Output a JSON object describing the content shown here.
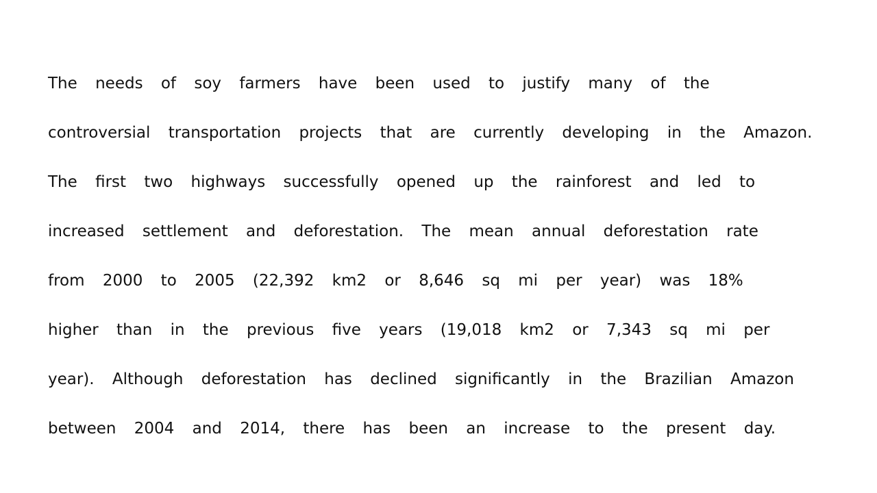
{
  "document": {
    "lines": [
      "The needs of soy farmers have been used to justify many of the",
      "controversial transportation projects that are currently developing in the Amazon.",
      "The first two highways successfully opened up the rainforest and led to",
      "increased settlement and deforestation. The mean annual deforestation rate",
      "from 2000 to 2005 (22,392 km2 or 8,646 sq mi per year) was 18%",
      "higher than in the previous five years (19,018 km2 or 7,343 sq mi per",
      "year). Although deforestation has declined significantly in the Brazilian Amazon",
      "between 2004 and 2014, there has been an increase to the present day."
    ]
  }
}
